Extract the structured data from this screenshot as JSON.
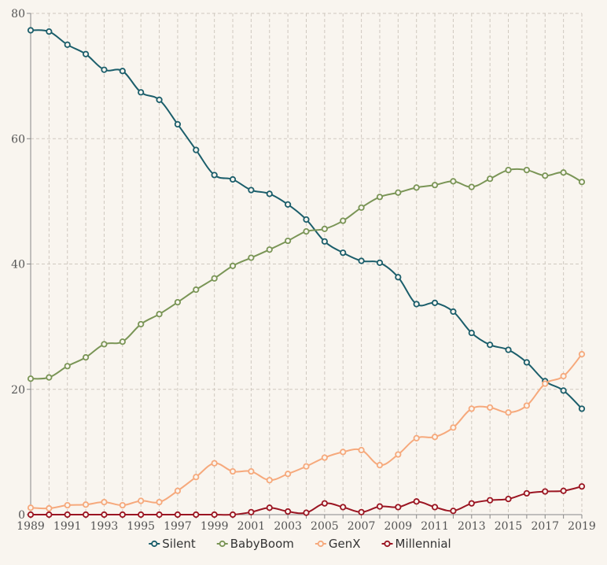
{
  "chart_data": {
    "type": "line",
    "title": "",
    "xlabel": "",
    "ylabel": "",
    "x": [
      1989,
      1990,
      1991,
      1992,
      1993,
      1994,
      1995,
      1996,
      1997,
      1998,
      1999,
      2000,
      2001,
      2002,
      2003,
      2004,
      2005,
      2006,
      2007,
      2008,
      2009,
      2010,
      2011,
      2012,
      2013,
      2014,
      2015,
      2016,
      2017,
      2018,
      2019
    ],
    "x_tick_labels": [
      "1989",
      "1991",
      "1993",
      "1995",
      "1997",
      "1999",
      "2001",
      "2003",
      "2005",
      "2007",
      "2009",
      "2011",
      "2013",
      "2015",
      "2017",
      "2019"
    ],
    "y_tick_labels": [
      "0",
      "20",
      "40",
      "60",
      "80"
    ],
    "xlim": [
      1989,
      2019
    ],
    "ylim": [
      0,
      80
    ],
    "grid": true,
    "legend_position": "bottom",
    "series": [
      {
        "name": "Silent",
        "color": "#1b5e6b",
        "values": [
          77.3,
          77.1,
          75.0,
          73.5,
          71.0,
          70.8,
          67.4,
          66.2,
          62.3,
          58.2,
          54.2,
          53.5,
          51.8,
          51.2,
          49.5,
          47.1,
          43.6,
          41.8,
          40.5,
          40.2,
          37.9,
          33.6,
          33.8,
          32.4,
          29.0,
          27.1,
          26.3,
          24.3,
          21.3,
          19.8,
          16.9
        ]
      },
      {
        "name": "BabyBoom",
        "color": "#7a9556",
        "values": [
          21.7,
          21.9,
          23.7,
          25.1,
          27.2,
          27.6,
          30.4,
          32.0,
          33.9,
          35.9,
          37.7,
          39.7,
          41.0,
          42.3,
          43.7,
          45.2,
          45.6,
          46.9,
          49.0,
          50.7,
          51.4,
          52.2,
          52.6,
          53.2,
          52.3,
          53.6,
          55.0,
          55.0,
          54.1,
          54.6,
          53.1
        ]
      },
      {
        "name": "GenX",
        "color": "#f6a97c",
        "values": [
          1.1,
          1.0,
          1.5,
          1.6,
          2.0,
          1.5,
          2.2,
          2.0,
          3.8,
          6.0,
          8.2,
          6.9,
          6.9,
          5.5,
          6.5,
          7.7,
          9.1,
          10.0,
          10.3,
          7.9,
          9.6,
          12.2,
          12.4,
          13.9,
          16.9,
          17.1,
          16.3,
          17.4,
          20.9,
          22.1,
          25.6
        ]
      },
      {
        "name": "Millennial",
        "color": "#9b1522",
        "values": [
          0,
          0,
          0,
          0,
          0,
          0,
          0,
          0,
          0,
          0,
          0,
          0,
          0.4,
          1.1,
          0.5,
          0.3,
          1.8,
          1.2,
          0.4,
          1.3,
          1.2,
          2.1,
          1.2,
          0.6,
          1.8,
          2.3,
          2.5,
          3.4,
          3.7,
          3.8,
          4.5
        ]
      }
    ]
  }
}
